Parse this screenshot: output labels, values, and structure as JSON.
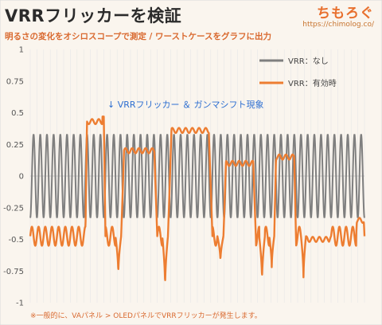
{
  "header": {
    "title": "VRRフリッカーを検証",
    "subtitle": "明るさの変化をオシロスコープで測定 / ワーストケースをグラフに出力",
    "logo": "ちもろぐ",
    "logo_url": "https://chimolog.co/"
  },
  "footnote": "※一般的に、VAパネル > OLEDパネルでVRRフリッカーが発生します。",
  "chart_data": {
    "type": "line",
    "title": "",
    "xlabel": "",
    "ylabel": "",
    "ylim": [
      -1,
      1
    ],
    "yticks": [
      "1",
      "0.75",
      "0.5",
      "0.25",
      "0",
      "-0.25",
      "-0.5",
      "-0.75",
      "-1"
    ],
    "ytick_values": [
      1,
      0.75,
      0.5,
      0.25,
      0,
      -0.25,
      -0.5,
      -0.75,
      -1
    ],
    "grid": "vertical",
    "legend_position": "top-right",
    "annotation": "↓ VRRフリッカー ＆ ガンマシフト現象",
    "series": [
      {
        "name": "VRR：なし",
        "color": "#7f7f7f",
        "waveform": "sine",
        "amplitude": 0.33,
        "cycles": 50
      },
      {
        "name": "VRR：有効時",
        "color": "#ed7d31",
        "waveform": "oscillation with brightness plateaus",
        "normal_min": -0.55,
        "normal_max": -0.4,
        "plateaus": [
          {
            "level": 0.43,
            "peak": 0.47
          },
          {
            "level": 0.2
          },
          {
            "level": 0.36
          },
          {
            "level": 0.1
          },
          {
            "level": 0.15
          },
          {
            "level": -0.5
          },
          {
            "level": -0.35
          }
        ],
        "dips": [
          -0.87,
          -0.8,
          -0.82,
          -0.67,
          -0.72,
          -0.77
        ]
      }
    ]
  }
}
